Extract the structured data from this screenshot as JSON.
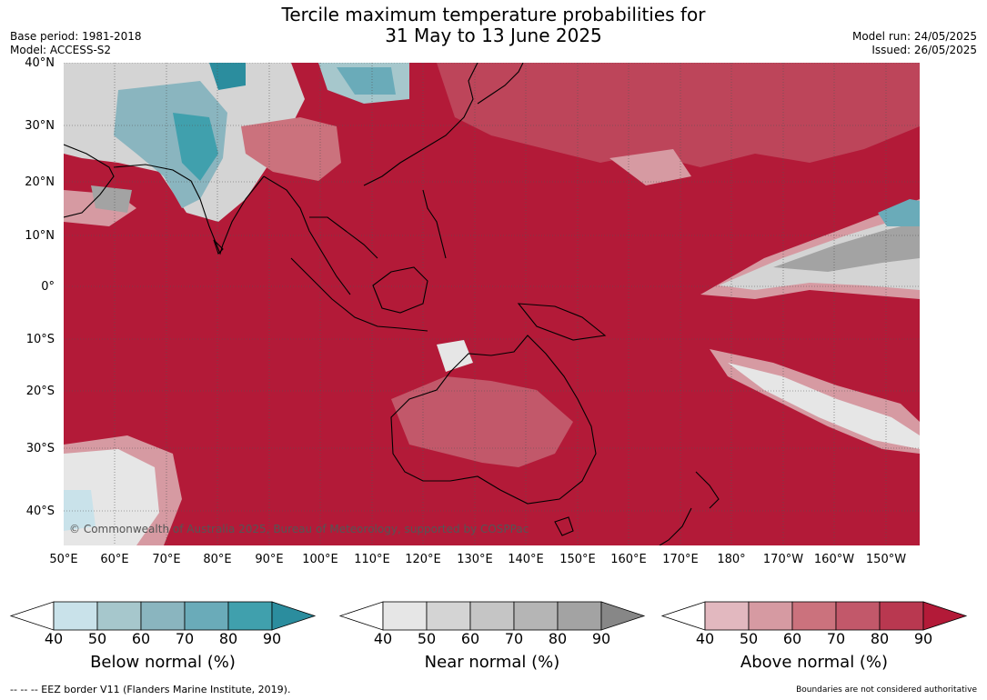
{
  "header": {
    "title_line1": "Tercile maximum temperature probabilities for",
    "title_line2": "31 May to 13 June 2025",
    "base_period": "Base period: 1981-2018",
    "model": "Model: ACCESS-S2",
    "model_run": "Model run: 24/05/2025",
    "issued": "Issued: 26/05/2025"
  },
  "map": {
    "lat_labels": [
      "40°N",
      "30°N",
      "20°N",
      "10°N",
      "0°",
      "10°S",
      "20°S",
      "30°S",
      "40°S"
    ],
    "lon_labels": [
      "50°E",
      "60°E",
      "70°E",
      "80°E",
      "90°E",
      "100°E",
      "110°E",
      "120°E",
      "130°E",
      "140°E",
      "150°E",
      "160°E",
      "170°E",
      "180°",
      "170°W",
      "160°W",
      "150°W"
    ],
    "copyright": "© Commonwealth of Australia 2025, Bureau of Meteorology, supported by COSPPac",
    "colors": {
      "above_dominant": "#b31a38",
      "ocean_above": "#b31a38",
      "coast": "#000000"
    }
  },
  "legend": {
    "ticks": [
      "40",
      "50",
      "60",
      "70",
      "80",
      "90"
    ],
    "below": {
      "title": "Below normal (%)",
      "colors": [
        "#ffffff",
        "#c9e2ea",
        "#a6c7cc",
        "#8ab5bf",
        "#6aabb9",
        "#40a0ad",
        "#2b8d9e"
      ]
    },
    "near": {
      "title": "Near normal (%)",
      "colors": [
        "#ffffff",
        "#e6e6e6",
        "#d4d4d4",
        "#c5c5c5",
        "#b5b5b5",
        "#a3a3a3",
        "#878787"
      ]
    },
    "above": {
      "title": "Above normal (%)",
      "colors": [
        "#ffffff",
        "#e2b8bf",
        "#d69aa2",
        "#cb727d",
        "#c2586a",
        "#b93850",
        "#b31a38"
      ]
    }
  },
  "footer": {
    "eez_note": "--  --  -- EEZ border V11 (Flanders Marine Institute, 2019).",
    "disclaimer": "Boundaries are not considered authoritative"
  }
}
